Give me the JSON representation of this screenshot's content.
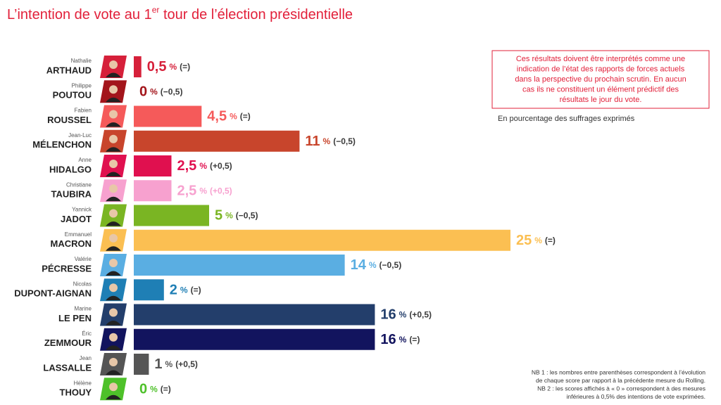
{
  "chart_data": {
    "type": "bar",
    "orientation": "horizontal",
    "title": [
      "L’intention de vote au 1",
      "er",
      " tour de l’élection présidentielle"
    ],
    "first_names": [
      "Nathalie",
      "Philippe",
      "Fabien",
      "Jean-Luc",
      "Anne",
      "Christiane",
      "Yannick",
      "Emmanuel",
      "Valérie",
      "Nicolas",
      "Marine",
      "Éric",
      "Jean",
      "Hélène"
    ],
    "categories": [
      "ARTHAUD",
      "POUTOU",
      "ROUSSEL",
      "MÉLENCHON",
      "HIDALGO",
      "TAUBIRA",
      "JADOT",
      "MACRON",
      "PÉCRESSE",
      "DUPONT-AIGNAN",
      "LE PEN",
      "ZEMMOUR",
      "LASSALLE",
      "THOUY"
    ],
    "values": [
      0.5,
      0,
      4.5,
      11,
      2.5,
      2.5,
      5,
      25,
      14,
      2,
      16,
      16,
      1,
      0
    ],
    "value_labels": [
      "0,5",
      "0",
      "4,5",
      "11",
      "2,5",
      "2,5",
      "5",
      "25",
      "14",
      "2",
      "16",
      "16",
      "1",
      "0"
    ],
    "unit": "%",
    "changes": [
      "(=)",
      "(−0,5)",
      "(=)",
      "(−0,5)",
      "(+0,5)",
      "(+0,5)",
      "(−0,5)",
      "(=)",
      "(−0,5)",
      "(=)",
      "(+0,5)",
      "(=)",
      "(+0,5)",
      "(=)"
    ],
    "colors": [
      "#d6203a",
      "#a3151b",
      "#f55a5a",
      "#c8452c",
      "#e0104f",
      "#f7a1cf",
      "#7ab523",
      "#fbbf52",
      "#5aaee2",
      "#1f7fb5",
      "#233e6b",
      "#12145e",
      "#555555",
      "#4ec12a"
    ],
    "note": [
      "Ces résultats doivent être interprétés comme une",
      "indication de l’état des rapports de forces actuels",
      "dans la perspective du prochain scrutin. En aucun",
      "cas ils ne constituent un élément prédictif des",
      "résultats le jour du vote."
    ],
    "subtitle": "En pourcentage des suffrages exprimés",
    "footnotes": [
      "NB 1 : les nombres entre parenthèses correspondent à l’évolution",
      "de chaque score par rapport à la précédente mesure du Rolling.",
      "NB 2 : les scores affichés à « 0 » correspondent à des mesures",
      "inférieures à 0,5% des intentions de vote exprimées."
    ]
  }
}
